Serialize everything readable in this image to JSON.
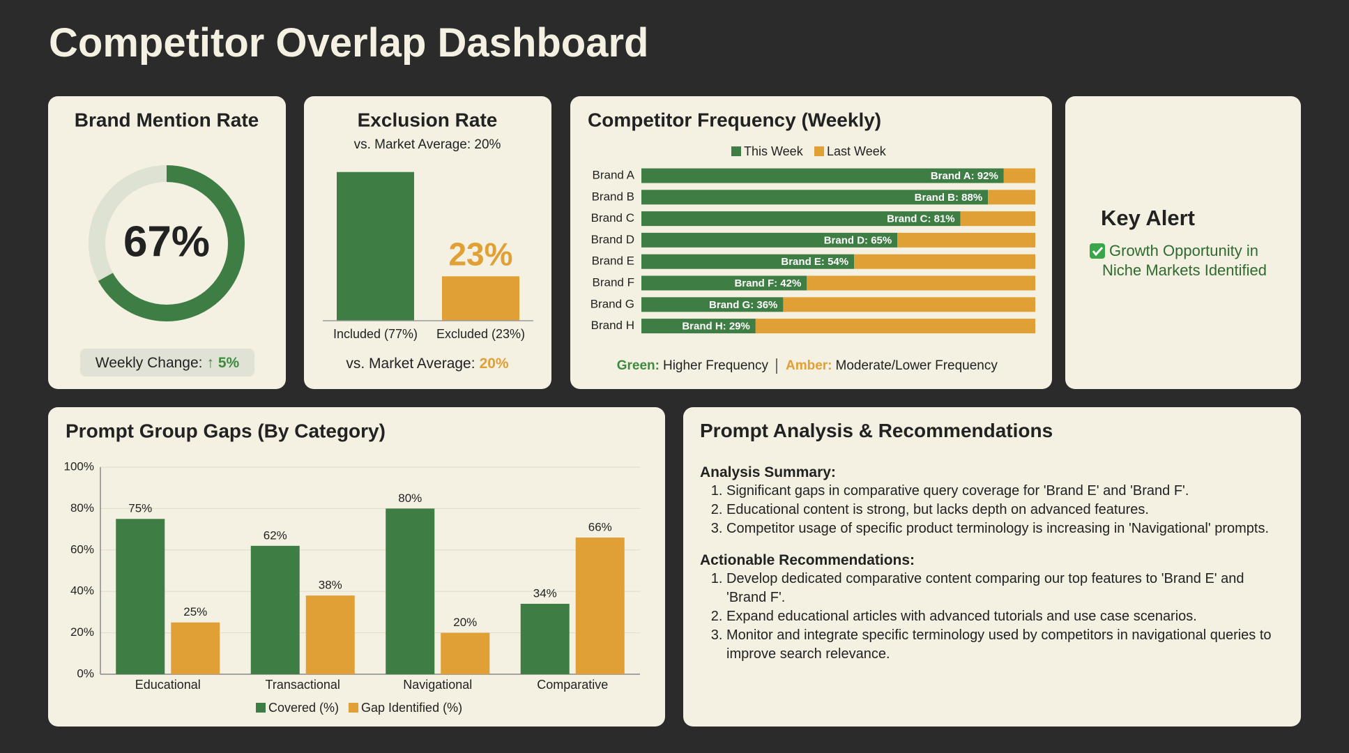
{
  "title": "Competitor Overlap Dashboard",
  "chart_data": [
    {
      "type": "gauge",
      "title": "Brand Mention Rate",
      "value": 67,
      "value_label": "67%",
      "range": [
        0,
        100
      ],
      "color": "#3e7d44",
      "track_color": "#dde2d3",
      "change_label": "Weekly Change:",
      "change_value": "↑ 5%",
      "change_color": "#3e8a3f"
    },
    {
      "type": "bar",
      "title": "Exclusion Rate",
      "subtitle": "vs. Market Average: 20%",
      "categories": [
        "Included (77%)",
        "Excluded (23%)"
      ],
      "values": [
        77,
        23
      ],
      "value_labels": [
        null,
        "23%"
      ],
      "colors": [
        "#3e7d44",
        "#e0a035"
      ],
      "ylim": [
        0,
        100
      ],
      "footer_label": "vs. Market Average:",
      "footer_value": "20%",
      "footer_color": "#e0a035"
    },
    {
      "type": "hbar-stacked",
      "title": "Competitor Frequency (Weekly)",
      "categories": [
        "Brand A",
        "Brand B",
        "Brand C",
        "Brand D",
        "Brand E",
        "Brand F",
        "Brand G",
        "Brand H"
      ],
      "series": [
        {
          "name": "This Week",
          "color": "#3e7d44",
          "values": [
            92,
            88,
            81,
            65,
            54,
            42,
            36,
            29
          ],
          "value_labels": [
            "Brand A: 92%",
            "Brand B: 88%",
            "Brand C: 81%",
            "Brand D: 65%",
            "Brand E: 54%",
            "Brand F: 42%",
            "Brand G: 36%",
            "Brand H: 29%"
          ]
        },
        {
          "name": "Last Week",
          "color": "#e0a035",
          "values": [
            8,
            12,
            19,
            35,
            46,
            58,
            64,
            71
          ]
        }
      ],
      "xlim": [
        0,
        100
      ],
      "notes": [
        {
          "label": "Green:",
          "text": "Higher Frequency",
          "color": "#3e8a3f"
        },
        {
          "label": "Amber:",
          "text": "Moderate/Lower Frequency",
          "color": "#e0a035"
        }
      ]
    },
    {
      "type": "grouped-bar",
      "title": "Prompt Group Gaps (By Category)",
      "categories": [
        "Educational",
        "Transactional",
        "Navigational",
        "Comparative"
      ],
      "series": [
        {
          "name": "Covered (%)",
          "color": "#3e7d44",
          "values": [
            75,
            62,
            80,
            34
          ],
          "value_labels": [
            "75%",
            "62%",
            "80%",
            "34%"
          ]
        },
        {
          "name": "Gap Identified (%)",
          "color": "#e0a035",
          "values": [
            25,
            38,
            20,
            66
          ],
          "value_labels": [
            "25%",
            "38%",
            "20%",
            "66%"
          ]
        }
      ],
      "ylim": [
        0,
        100
      ],
      "yticks": [
        {
          "value": 0,
          "label": "0%"
        },
        {
          "value": 20,
          "label": "20%"
        },
        {
          "value": 40,
          "label": "40%"
        },
        {
          "value": 60,
          "label": "60%"
        },
        {
          "value": 80,
          "label": "80%"
        },
        {
          "value": 100,
          "label": "100%"
        }
      ],
      "grid": true
    }
  ],
  "key_alert": {
    "title": "Key Alert",
    "lines": [
      "Growth Opportunity in",
      "Niche Markets Identified"
    ]
  },
  "analysis": {
    "title": "Prompt Analysis & Recommendations",
    "sections": [
      {
        "heading": "Analysis Summary:",
        "items": [
          "Significant gaps in comparative query coverage for 'Brand E' and 'Brand F'.",
          "Educational content is strong, but lacks depth on advanced features.",
          "Competitor usage of specific product terminology is increasing in 'Navigational' prompts."
        ]
      },
      {
        "heading": "Actionable Recommendations:",
        "items": [
          "Develop dedicated comparative content comparing our top features to 'Brand E' and 'Brand F'.",
          "Expand educational articles with advanced tutorials and use case scenarios.",
          "Monitor and integrate specific terminology used by competitors in navigational queries to improve search relevance."
        ]
      }
    ]
  }
}
